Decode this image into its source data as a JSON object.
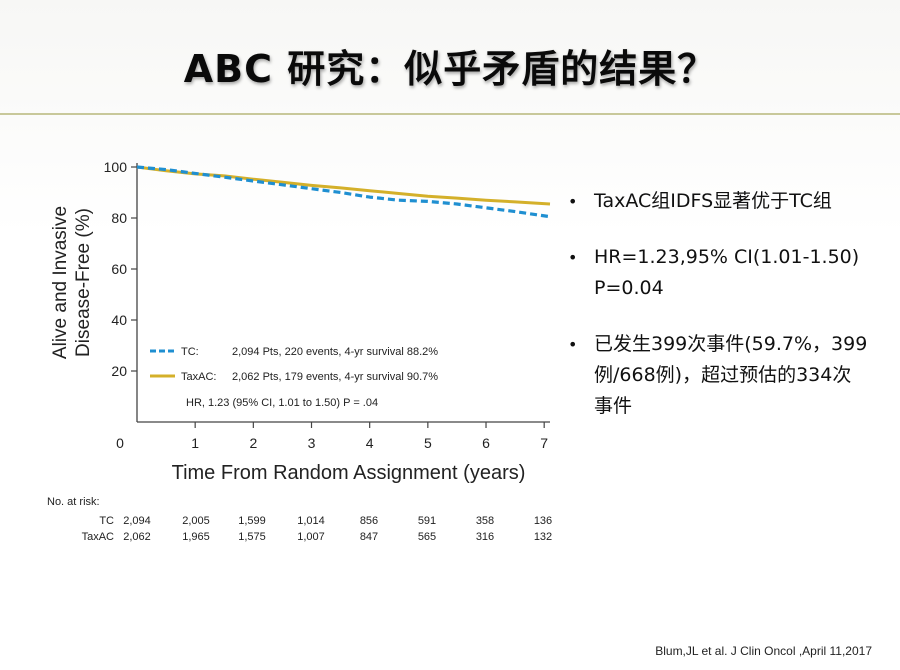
{
  "slide": {
    "title": "ABC 研究：似乎矛盾的结果？",
    "bullets": [
      "TaxAC组IDFS显著优于TC组",
      "HR=1.23,95% CI(1.01-1.50) P=0.04",
      "已发生399次事件(59.7%，399例/668例)，超过预估的334次事件"
    ],
    "citation": "Blum,JL et al. J Clin Oncol ,April 11,2017"
  },
  "chart_data": {
    "type": "line",
    "xlabel": "Time From Random Assignment (years)",
    "ylabel_line1": "Alive and Invasive",
    "ylabel_line2": "Disease-Free (%)",
    "xlim": [
      0,
      7.1
    ],
    "ylim": [
      0,
      100
    ],
    "x_ticks": [
      0,
      1,
      2,
      3,
      4,
      5,
      6,
      7
    ],
    "y_ticks": [
      20,
      40,
      60,
      80,
      100
    ],
    "grid": false,
    "series": [
      {
        "name": "TC",
        "color": "#1f8fd1",
        "dashed": true,
        "x": [
          0,
          0.5,
          1,
          1.5,
          2,
          2.5,
          3,
          3.5,
          4,
          4.5,
          5,
          5.5,
          6,
          6.5,
          7.1
        ],
        "y": [
          100,
          99,
          97.5,
          96,
          94.5,
          93,
          91.5,
          90,
          88.2,
          87,
          86.5,
          85.5,
          84,
          82.5,
          80.5
        ]
      },
      {
        "name": "TaxAC",
        "color": "#d4b02a",
        "dashed": false,
        "x": [
          0,
          0.5,
          1,
          1.5,
          2,
          2.5,
          3,
          3.5,
          4,
          4.5,
          5,
          5.5,
          6,
          6.5,
          7.1
        ],
        "y": [
          100,
          98.5,
          97.3,
          96.5,
          95.2,
          94,
          92.8,
          91.8,
          90.7,
          89.6,
          88.5,
          87.8,
          87,
          86.3,
          85.5
        ]
      }
    ],
    "legend": {
      "placement": "bottom-left",
      "entries": [
        {
          "label": "TC:",
          "text": "2,094 Pts, 220 events, 4-yr survival 88.2%"
        },
        {
          "label": "TaxAC:",
          "text": "2,062 Pts, 179 events, 4-yr survival 90.7%"
        }
      ],
      "hr_text": "HR, 1.23 (95% CI, 1.01 to 1.50) P = .04"
    },
    "risk_table": {
      "header": "No. at risk:",
      "rows": [
        {
          "label": "TC",
          "values": [
            "2,094",
            "2,005",
            "1,599",
            "1,014",
            "856",
            "591",
            "358",
            "136"
          ]
        },
        {
          "label": "TaxAC",
          "values": [
            "2,062",
            "1,965",
            "1,575",
            "1,007",
            "847",
            "565",
            "316",
            "132"
          ]
        }
      ]
    }
  }
}
